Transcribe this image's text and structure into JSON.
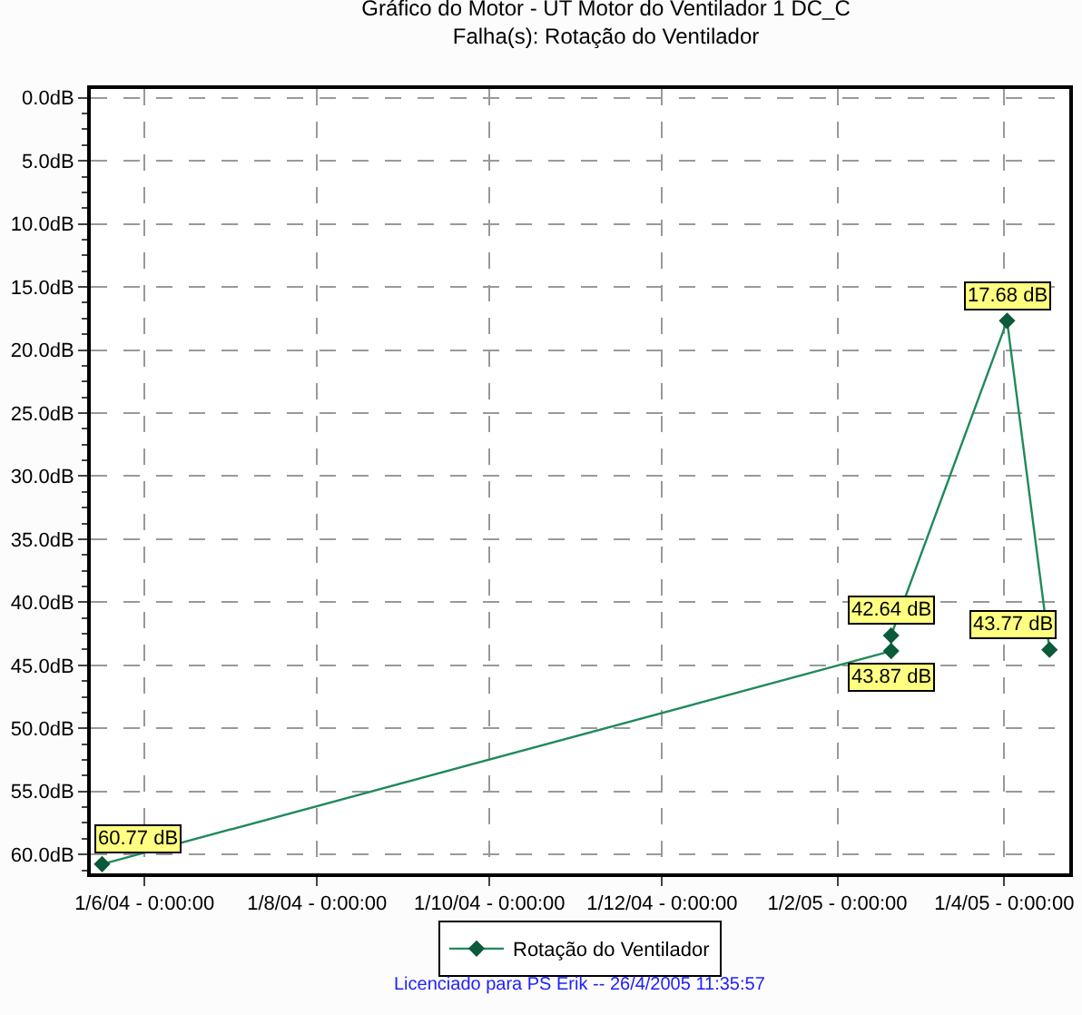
{
  "chart_data": {
    "type": "line",
    "title": "Gráfico do Motor - UT Motor do Ventilador 1 DC_C",
    "subtitle": "Falha(s): Rotação do Ventilador",
    "x": [
      "2004-05-17",
      "2005-02-20",
      "2005-02-20",
      "2005-04-02",
      "2005-04-17"
    ],
    "series": [
      {
        "name": "Rotação do Ventilador",
        "color": "#1f8a5a",
        "values": [
          60.77,
          43.87,
          42.64,
          17.68,
          43.77
        ],
        "value_labels": [
          "60.77 dB",
          "43.87 dB",
          "42.64 dB",
          "17.68 dB",
          "43.77 dB"
        ]
      }
    ],
    "xlim": [
      "2004-05-13",
      "2005-04-24"
    ],
    "xticks": [
      {
        "value": "2004-06-01",
        "label": "1/6/04 - 0:00:00"
      },
      {
        "value": "2004-08-01",
        "label": "1/8/04 - 0:00:00"
      },
      {
        "value": "2004-10-01",
        "label": "1/10/04 - 0:00:00"
      },
      {
        "value": "2004-12-01",
        "label": "1/12/04 - 0:00:00"
      },
      {
        "value": "2005-02-01",
        "label": "1/2/05 - 0:00:00"
      },
      {
        "value": "2005-04-01",
        "label": "1/4/05 - 0:00:00"
      }
    ],
    "ylim": [
      61.5,
      -0.7
    ],
    "yticks": [
      {
        "value": 0,
        "label": "0.0dB"
      },
      {
        "value": 5,
        "label": "5.0dB"
      },
      {
        "value": 10,
        "label": "10.0dB"
      },
      {
        "value": 15,
        "label": "15.0dB"
      },
      {
        "value": 20,
        "label": "20.0dB"
      },
      {
        "value": 25,
        "label": "25.0dB"
      },
      {
        "value": 30,
        "label": "30.0dB"
      },
      {
        "value": 35,
        "label": "35.0dB"
      },
      {
        "value": 40,
        "label": "40.0dB"
      },
      {
        "value": 45,
        "label": "45.0dB"
      },
      {
        "value": 50,
        "label": "50.0dB"
      },
      {
        "value": 55,
        "label": "55.0dB"
      },
      {
        "value": 60,
        "label": "60.0dB"
      }
    ],
    "grid": true,
    "legend": "bottom",
    "marker": "diamond",
    "line_style": "solid",
    "annotations": [
      "Licenciado para PS Erik -- 26/4/2005 11:35:57"
    ]
  }
}
